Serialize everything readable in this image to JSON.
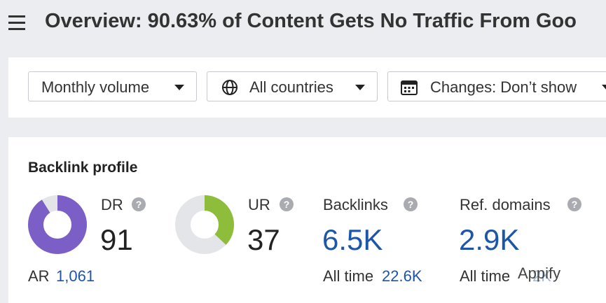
{
  "header": {
    "title": "Overview: 90.63% of Content Gets No Traffic From Goo"
  },
  "filters": [
    "Monthly volume",
    "All countries",
    "Changes: Don’t show"
  ],
  "backlink_profile": {
    "title": "Backlink profile",
    "dr": {
      "label": "DR",
      "value": 91,
      "color": "#7b5fc7"
    },
    "ur": {
      "label": "UR",
      "value": 37,
      "color": "#8dbd3a"
    },
    "ar": {
      "label": "AR",
      "value": "1,061"
    },
    "backlinks": {
      "label": "Backlinks",
      "value": "6.5K",
      "sub_label": "All time",
      "sub_value": "22.6K"
    },
    "ref_domains": {
      "label": "Ref. domains",
      "value": "2.9K",
      "sub_label": "All time",
      "sub_value": "2K"
    }
  },
  "watermark": "Appify"
}
